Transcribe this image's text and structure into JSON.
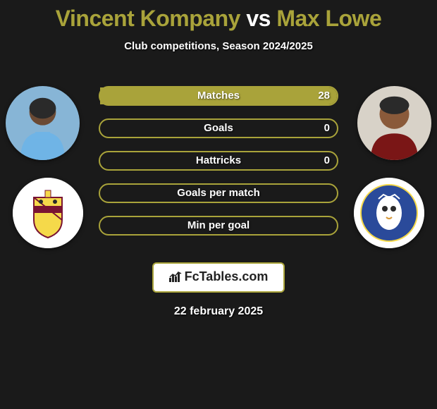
{
  "title": {
    "player1": "Vincent Kompany",
    "vs": "vs",
    "player2": "Max Lowe",
    "player1_color": "#a9a33a",
    "player2_color": "#a9a33a",
    "vs_color": "#ffffff"
  },
  "subtitle": "Club competitions, Season 2024/2025",
  "colors": {
    "player1_accent": "#a9a33a",
    "player2_accent": "#a9a33a",
    "bar_border": "#a9a33a",
    "background": "#1a1a1a",
    "text": "#ffffff"
  },
  "stats": [
    {
      "label": "Matches",
      "left_val": "",
      "right_val": "28",
      "left_pct": 0,
      "right_pct": 100
    },
    {
      "label": "Goals",
      "left_val": "",
      "right_val": "0",
      "left_pct": 0,
      "right_pct": 0
    },
    {
      "label": "Hattricks",
      "left_val": "",
      "right_val": "0",
      "left_pct": 0,
      "right_pct": 0
    },
    {
      "label": "Goals per match",
      "left_val": "",
      "right_val": "",
      "left_pct": 0,
      "right_pct": 0
    },
    {
      "label": "Min per goal",
      "left_val": "",
      "right_val": "",
      "left_pct": 0,
      "right_pct": 0
    }
  ],
  "logo_text": "FcTables.com",
  "date": "22 february 2025",
  "avatars": {
    "player1_name": "Vincent Kompany",
    "player2_name": "Max Lowe",
    "club1_name": "Burnley",
    "club2_name": "Sheffield Wednesday"
  }
}
